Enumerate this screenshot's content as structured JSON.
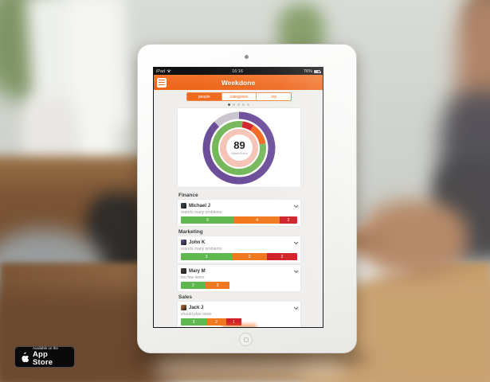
{
  "device": {
    "status_bar": {
      "carrier": "iPad",
      "time": "16:16",
      "battery": "76%"
    }
  },
  "app": {
    "title": "Weekdone",
    "tabs": [
      {
        "label": "people",
        "selected": true
      },
      {
        "label": "categories",
        "selected": false
      },
      {
        "label": "top",
        "selected": false
      }
    ],
    "page_dots": {
      "count": 5,
      "active_index": 0
    },
    "score": {
      "value": "89",
      "label": "WeekScore"
    },
    "sections": [
      {
        "title": "Finance",
        "people": [
          {
            "name": "Michael J",
            "note": "reports many problems",
            "avatar_color": "#3a4a5a",
            "bar": [
              {
                "value": "5",
                "pct": 46,
                "color": "#5fb84e"
              },
              {
                "value": "4",
                "pct": 39,
                "color": "#f0791f"
              },
              {
                "value": "2",
                "pct": 15,
                "color": "#cf1f27"
              }
            ]
          }
        ]
      },
      {
        "title": "Marketing",
        "people": [
          {
            "name": "John K",
            "note": "reports many problems",
            "avatar_color": "#6a5a9e",
            "bar": [
              {
                "value": "3",
                "pct": 44,
                "color": "#5fb84e"
              },
              {
                "value": "2",
                "pct": 30,
                "color": "#f0791f"
              },
              {
                "value": "2",
                "pct": 26,
                "color": "#cf1f27"
              }
            ]
          },
          {
            "name": "Mary M",
            "note": "too few items",
            "avatar_color": "#4a4440",
            "bar": [
              {
                "value": "2",
                "pct": 21,
                "color": "#5fb84e"
              },
              {
                "value": "3",
                "pct": 21,
                "color": "#f0791f"
              }
            ]
          }
        ]
      },
      {
        "title": "Sales",
        "people": [
          {
            "name": "Jack J",
            "note": "should plan more",
            "avatar_color": "#c77b3a",
            "bar": [
              {
                "value": "3",
                "pct": 22,
                "color": "#5fb84e"
              },
              {
                "value": "2",
                "pct": 17,
                "color": "#f0791f"
              },
              {
                "value": "1",
                "pct": 13,
                "color": "#cf1f27"
              }
            ]
          }
        ]
      }
    ]
  },
  "appstore_badge": {
    "line1": "Available on the",
    "line2": "App Store"
  },
  "colors": {
    "brand_orange": "#ee6a1e",
    "bar_green": "#5fb84e",
    "bar_orange": "#f0791f",
    "bar_red": "#cf1f27",
    "ring_purple": "#6b4d99",
    "ring_gray": "#c9c4ce",
    "ring_green": "#76b75c",
    "inner_pink": "#f6c3b6"
  },
  "chart_data": [
    {
      "type": "donut",
      "title": "WeekScore gauge",
      "center_value": 89,
      "center_label": "WeekScore",
      "rings": [
        {
          "name": "outer-ring",
          "radius": 41,
          "thickness": 9,
          "segments": [
            {
              "color": "#6b4d99",
              "start_deg": 0,
              "end_deg": 317
            },
            {
              "color": "#c9c4ce",
              "start_deg": 317,
              "end_deg": 360
            }
          ]
        },
        {
          "name": "middle-ring",
          "radius": 30,
          "thickness": 8,
          "segments": [
            {
              "color": "#d0202a",
              "start_deg": 8,
              "end_deg": 33
            },
            {
              "color": "#f2661f",
              "start_deg": 33,
              "end_deg": 80
            },
            {
              "color": "#76b75c",
              "start_deg": 80,
              "end_deg": 368
            }
          ]
        },
        {
          "name": "inner-disc",
          "radius": 24,
          "thickness": 0,
          "segments": [
            {
              "color": "#f6c3b6",
              "start_deg": 0,
              "end_deg": 360
            }
          ]
        }
      ]
    },
    {
      "type": "bar",
      "orientation": "horizontal-stacked",
      "title": "Items per person (green / orange / red)",
      "rows": [
        {
          "label": "Michael J",
          "values": [
            5,
            4,
            2
          ]
        },
        {
          "label": "John K",
          "values": [
            3,
            2,
            2
          ]
        },
        {
          "label": "Mary M",
          "values": [
            2,
            3,
            0
          ]
        },
        {
          "label": "Jack J",
          "values": [
            3,
            2,
            1
          ]
        }
      ],
      "series_colors": [
        "#5fb84e",
        "#f0791f",
        "#cf1f27"
      ]
    }
  ]
}
